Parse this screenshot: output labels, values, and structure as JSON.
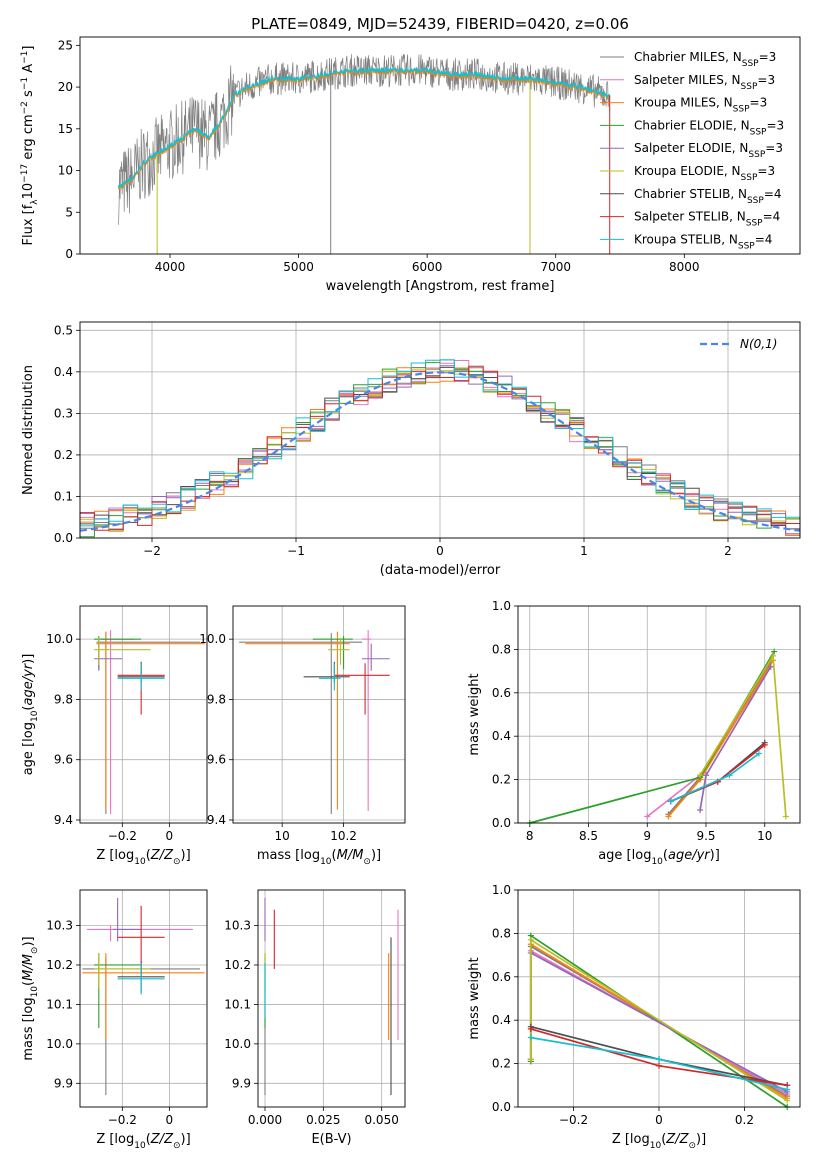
{
  "figure_title": "PLATE=0849, MJD=52439, FIBERID=0420, z=0.06",
  "colors": {
    "chabrier_miles": "#7f7f7f",
    "salpeter_miles": "#e377c2",
    "kroupa_miles": "#ff7f0e",
    "chabrier_elodie": "#2ca02c",
    "salpeter_elodie": "#9467bd",
    "kroupa_elodie": "#bcbd22",
    "chabrier_stelib": "#4d4d4d",
    "salpeter_stelib": "#d62728",
    "kroupa_stelib": "#17becf",
    "normal": "#4a86e8"
  },
  "chart_data": [
    {
      "id": "spectrum",
      "type": "line",
      "title": "PLATE=0849, MJD=52439, FIBERID=0420, z=0.06",
      "xlabel": "wavelength [Angstrom, rest frame]",
      "ylabel": "Flux [f_λ 10^-17 erg cm^-2 s^-1 A^-1]",
      "xlim": [
        3300,
        8900
      ],
      "ylim": [
        0,
        26
      ],
      "xticks": [
        4000,
        5000,
        6000,
        7000,
        8000
      ],
      "yticks": [
        0,
        5,
        10,
        15,
        20,
        25
      ],
      "legend_position": "upper-right",
      "series": [
        {
          "name": "Chabrier MILES, N_SSP=3"
        },
        {
          "name": "Salpeter MILES, N_SSP=3"
        },
        {
          "name": "Kroupa MILES, N_SSP=3"
        },
        {
          "name": "Chabrier ELODIE, N_SSP=3"
        },
        {
          "name": "Salpeter ELODIE, N_SSP=3"
        },
        {
          "name": "Kroupa ELODIE, N_SSP=3"
        },
        {
          "name": "Chabrier STELIB, N_SSP=4"
        },
        {
          "name": "Salpeter STELIB, N_SSP=4"
        },
        {
          "name": "Kroupa STELIB, N_SSP=4"
        }
      ],
      "data_envelope": {
        "x": [
          3600,
          3700,
          3800,
          3900,
          4000,
          4100,
          4200,
          4300,
          4400,
          4500,
          4600,
          4800,
          5000,
          5200,
          5400,
          5600,
          5800,
          6000,
          6200,
          6400,
          6600,
          6800,
          7000,
          7200,
          7400
        ],
        "y": [
          8,
          9,
          11,
          12,
          13,
          14,
          15,
          14,
          16,
          19,
          20,
          21,
          21,
          21.5,
          22,
          22,
          22,
          22,
          21.5,
          21.5,
          21,
          21,
          20.5,
          20,
          19
        ]
      }
    },
    {
      "id": "residuals",
      "type": "line",
      "xlabel": "(data-model)/error",
      "ylabel": "Normed distribution",
      "xlim": [
        -2.5,
        2.5
      ],
      "ylim": [
        0,
        0.52
      ],
      "xticks": [
        -2,
        -1,
        0,
        1,
        2
      ],
      "yticks": [
        0.0,
        0.1,
        0.2,
        0.3,
        0.4,
        0.5
      ],
      "legend": "N(0,1)",
      "legend_position": "upper-right",
      "grid": true,
      "histogram_bins": [
        -2.5,
        -2.4,
        -2.3,
        -2.2,
        -2.1,
        -2.0,
        -1.9,
        -1.8,
        -1.7,
        -1.6,
        -1.5,
        -1.4,
        -1.3,
        -1.2,
        -1.1,
        -1.0,
        -0.9,
        -0.8,
        -0.7,
        -0.6,
        -0.5,
        -0.4,
        -0.3,
        -0.2,
        -0.1,
        0.0,
        0.1,
        0.2,
        0.3,
        0.4,
        0.5,
        0.6,
        0.7,
        0.8,
        0.9,
        1.0,
        1.1,
        1.2,
        1.3,
        1.4,
        1.5,
        1.6,
        1.7,
        1.8,
        1.9,
        2.0,
        2.1,
        2.2,
        2.3,
        2.4,
        2.5
      ]
    },
    {
      "id": "age_vs_Z",
      "type": "scatter",
      "xlabel": "Z [log10(Z/Z_sun)]",
      "ylabel": "age [log10(age/yr)]",
      "xlim": [
        -0.38,
        0.16
      ],
      "ylim": [
        9.39,
        10.11
      ],
      "xticks": [
        -0.2,
        0.0
      ],
      "yticks": [
        9.4,
        9.6,
        9.8,
        10.0
      ],
      "grid": true,
      "points": [
        {
          "x": -0.27,
          "y": 9.99,
          "xerr": [
            0.04,
            0.4
          ],
          "yerr": [
            0.57,
            0.03
          ],
          "c": "chabrier_miles"
        },
        {
          "x": -0.25,
          "y": 10.0,
          "xerr": [
            0.04,
            0.1
          ],
          "yerr": [
            0.58,
            0.03
          ],
          "c": "salpeter_miles"
        },
        {
          "x": -0.27,
          "y": 9.985,
          "xerr": [
            0.04,
            0.42
          ],
          "yerr": [
            0.55,
            0.04
          ],
          "c": "kroupa_miles"
        },
        {
          "x": -0.3,
          "y": 10.0,
          "xerr": [
            0.02,
            0.18
          ],
          "yerr": [
            0.1,
            0.01
          ],
          "c": "chabrier_elodie"
        },
        {
          "x": -0.3,
          "y": 9.935,
          "xerr": [
            0.02,
            0.1
          ],
          "yerr": [
            0.04,
            0.05
          ],
          "c": "salpeter_elodie"
        },
        {
          "x": -0.3,
          "y": 9.965,
          "xerr": [
            0.02,
            0.22
          ],
          "yerr": [
            0.05,
            0.04
          ],
          "c": "kroupa_elodie"
        },
        {
          "x": -0.12,
          "y": 9.875,
          "xerr": [
            0.1,
            0.1
          ],
          "yerr": [
            0.02,
            0.05
          ],
          "c": "chabrier_stelib"
        },
        {
          "x": -0.12,
          "y": 9.88,
          "xerr": [
            0.1,
            0.1
          ],
          "yerr": [
            0.13,
            0.04
          ],
          "c": "salpeter_stelib"
        },
        {
          "x": -0.12,
          "y": 9.87,
          "xerr": [
            0.1,
            0.1
          ],
          "yerr": [
            0.04,
            0.05
          ],
          "c": "kroupa_stelib"
        }
      ]
    },
    {
      "id": "age_vs_mass",
      "type": "scatter",
      "xlabel": "mass [log10(M/M_sun)]",
      "ylabel": "",
      "xlim": [
        9.84,
        10.4
      ],
      "ylim": [
        9.39,
        10.11
      ],
      "xticks": [
        10.0,
        10.2
      ],
      "yticks": [
        9.4,
        9.6,
        9.8,
        10.0
      ],
      "grid": true,
      "points": [
        {
          "x": 10.16,
          "y": 9.99,
          "xerr": [
            0.3,
            0.1
          ],
          "yerr": [
            0.57,
            0.03
          ],
          "c": "chabrier_miles"
        },
        {
          "x": 10.28,
          "y": 10.0,
          "xerr": [
            0.02,
            0.01
          ],
          "yerr": [
            0.57,
            0.03
          ],
          "c": "salpeter_miles"
        },
        {
          "x": 10.18,
          "y": 9.985,
          "xerr": [
            0.3,
            0.04
          ],
          "yerr": [
            0.55,
            0.04
          ],
          "c": "kroupa_miles"
        },
        {
          "x": 10.2,
          "y": 10.0,
          "xerr": [
            0.1,
            0.03
          ],
          "yerr": [
            0.1,
            0.01
          ],
          "c": "chabrier_elodie"
        },
        {
          "x": 10.29,
          "y": 9.935,
          "xerr": [
            0.03,
            0.06
          ],
          "yerr": [
            0.04,
            0.05
          ],
          "c": "salpeter_elodie"
        },
        {
          "x": 10.19,
          "y": 9.965,
          "xerr": [
            0.04,
            0.03
          ],
          "yerr": [
            0.05,
            0.04
          ],
          "c": "kroupa_elodie"
        },
        {
          "x": 10.17,
          "y": 9.875,
          "xerr": [
            0.1,
            0.05
          ],
          "yerr": [
            0.02,
            0.05
          ],
          "c": "chabrier_stelib"
        },
        {
          "x": 10.27,
          "y": 9.88,
          "xerr": [
            0.1,
            0.08
          ],
          "yerr": [
            0.13,
            0.04
          ],
          "c": "salpeter_stelib"
        },
        {
          "x": 10.17,
          "y": 9.87,
          "xerr": [
            0.05,
            0.02
          ],
          "yerr": [
            0.04,
            0.05
          ],
          "c": "kroupa_stelib"
        }
      ]
    },
    {
      "id": "mass_weight_vs_age",
      "type": "line",
      "xlabel": "age [log10(age/yr)]",
      "ylabel": "mass weight",
      "xlim": [
        7.9,
        10.3
      ],
      "ylim": [
        0.0,
        1.0
      ],
      "xticks": [
        8.0,
        8.5,
        9.0,
        9.5,
        10.0
      ],
      "yticks": [
        0.0,
        0.2,
        0.4,
        0.6,
        0.8,
        1.0
      ],
      "grid": true,
      "series": [
        {
          "x": [
            9.18,
            9.45,
            10.05
          ],
          "y": [
            0.04,
            0.21,
            0.74
          ],
          "c": "chabrier_miles"
        },
        {
          "x": [
            9.0,
            9.45,
            10.05
          ],
          "y": [
            0.03,
            0.22,
            0.72
          ],
          "c": "salpeter_miles"
        },
        {
          "x": [
            9.18,
            9.45,
            10.07
          ],
          "y": [
            0.03,
            0.2,
            0.75
          ],
          "c": "kroupa_miles"
        },
        {
          "x": [
            8.0,
            9.45,
            10.08
          ],
          "y": [
            0.0,
            0.21,
            0.79
          ],
          "c": "chabrier_elodie"
        },
        {
          "x": [
            9.45,
            9.5,
            10.05
          ],
          "y": [
            0.06,
            0.22,
            0.72
          ],
          "c": "salpeter_elodie"
        },
        {
          "x": [
            9.45,
            10.07,
            10.18
          ],
          "y": [
            0.22,
            0.77,
            0.03
          ],
          "c": "kroupa_elodie"
        },
        {
          "x": [
            9.2,
            9.6,
            10.0
          ],
          "y": [
            0.1,
            0.19,
            0.37
          ],
          "c": "chabrier_stelib"
        },
        {
          "x": [
            9.2,
            9.6,
            10.0
          ],
          "y": [
            0.1,
            0.19,
            0.36
          ],
          "c": "salpeter_stelib"
        },
        {
          "x": [
            9.2,
            9.7,
            9.95
          ],
          "y": [
            0.1,
            0.22,
            0.32
          ],
          "c": "kroupa_stelib"
        }
      ]
    },
    {
      "id": "mass_vs_Z",
      "type": "scatter",
      "xlabel": "Z [log10(Z/Z_sun)]",
      "ylabel": "mass [log10(M/M_sun)]",
      "xlim": [
        -0.38,
        0.16
      ],
      "ylim": [
        9.84,
        10.39
      ],
      "xticks": [
        -0.2,
        0.0
      ],
      "yticks": [
        9.9,
        10.0,
        10.1,
        10.2,
        10.3
      ],
      "grid": true,
      "points": [
        {
          "x": -0.27,
          "y": 10.19,
          "xerr": [
            0.1,
            0.4
          ],
          "yerr": [
            0.32,
            0.03
          ],
          "c": "chabrier_miles"
        },
        {
          "x": -0.25,
          "y": 10.29,
          "xerr": [
            0.1,
            0.35
          ],
          "yerr": [
            0.03,
            0.01
          ],
          "c": "salpeter_miles"
        },
        {
          "x": -0.27,
          "y": 10.18,
          "xerr": [
            0.1,
            0.42
          ],
          "yerr": [
            0.17,
            0.05
          ],
          "c": "kroupa_miles"
        },
        {
          "x": -0.3,
          "y": 10.2,
          "xerr": [
            0.02,
            0.18
          ],
          "yerr": [
            0.16,
            0.03
          ],
          "c": "chabrier_elodie"
        },
        {
          "x": -0.22,
          "y": 10.29,
          "xerr": [
            0.02,
            0.1
          ],
          "yerr": [
            0.03,
            0.08
          ],
          "c": "salpeter_elodie"
        },
        {
          "x": -0.3,
          "y": 10.19,
          "xerr": [
            0.02,
            0.22
          ],
          "yerr": [
            0.05,
            0.04
          ],
          "c": "kroupa_elodie"
        },
        {
          "x": -0.12,
          "y": 10.17,
          "xerr": [
            0.1,
            0.1
          ],
          "yerr": [
            0.04,
            0.04
          ],
          "c": "chabrier_stelib"
        },
        {
          "x": -0.12,
          "y": 10.27,
          "xerr": [
            0.1,
            0.1
          ],
          "yerr": [
            0.1,
            0.08
          ],
          "c": "salpeter_stelib"
        },
        {
          "x": -0.12,
          "y": 10.165,
          "xerr": [
            0.1,
            0.1
          ],
          "yerr": [
            0.04,
            0.04
          ],
          "c": "kroupa_stelib"
        }
      ]
    },
    {
      "id": "mass_vs_ebv",
      "type": "scatter",
      "xlabel": "E(B-V)",
      "ylabel": "",
      "xlim": [
        -0.003,
        0.06
      ],
      "ylim": [
        9.84,
        10.39
      ],
      "xticks": [
        0.0,
        0.025,
        0.05
      ],
      "yticks": [
        9.9,
        10.0,
        10.1,
        10.2,
        10.3
      ],
      "grid": true,
      "points": [
        {
          "x": 0.0,
          "y": 10.19,
          "xerr": [
            0,
            0
          ],
          "yerr": [
            0.32,
            0.03
          ],
          "c": "chabrier_miles"
        },
        {
          "x": 0.057,
          "y": 10.29,
          "xerr": [
            0,
            0
          ],
          "yerr": [
            0.28,
            0.05
          ],
          "c": "salpeter_miles"
        },
        {
          "x": 0.053,
          "y": 10.18,
          "xerr": [
            0,
            0
          ],
          "yerr": [
            0.17,
            0.05
          ],
          "c": "kroupa_miles"
        },
        {
          "x": 0.0,
          "y": 10.2,
          "xerr": [
            0,
            0
          ],
          "yerr": [
            0.16,
            0.03
          ],
          "c": "chabrier_elodie"
        },
        {
          "x": 0.0,
          "y": 10.29,
          "xerr": [
            0,
            0
          ],
          "yerr": [
            0.03,
            0.08
          ],
          "c": "salpeter_elodie"
        },
        {
          "x": 0.0,
          "y": 10.19,
          "xerr": [
            0,
            0
          ],
          "yerr": [
            0.05,
            0.04
          ],
          "c": "kroupa_elodie"
        },
        {
          "x": 0.054,
          "y": 10.17,
          "xerr": [
            0,
            0
          ],
          "yerr": [
            0.3,
            0.1
          ],
          "c": "chabrier_stelib"
        },
        {
          "x": 0.004,
          "y": 10.27,
          "xerr": [
            0,
            0
          ],
          "yerr": [
            0.08,
            0.07
          ],
          "c": "salpeter_stelib"
        },
        {
          "x": 0.0,
          "y": 10.165,
          "xerr": [
            0,
            0
          ],
          "yerr": [
            0.1,
            0.04
          ],
          "c": "kroupa_stelib"
        }
      ]
    },
    {
      "id": "mass_weight_vs_Z",
      "type": "line",
      "xlabel": "Z [log10(Z/Z_sun)]",
      "ylabel": "mass weight",
      "xlim": [
        -0.33,
        0.33
      ],
      "ylim": [
        0.0,
        1.0
      ],
      "xticks": [
        -0.2,
        0.0,
        0.2
      ],
      "yticks": [
        0.0,
        0.2,
        0.4,
        0.6,
        0.8,
        1.0
      ],
      "grid": true,
      "series": [
        {
          "x": [
            -0.3,
            -0.3,
            0.3
          ],
          "y": [
            0.22,
            0.74,
            0.05
          ],
          "c": "chabrier_miles"
        },
        {
          "x": [
            -0.3,
            -0.3,
            0.3
          ],
          "y": [
            0.21,
            0.72,
            0.06
          ],
          "c": "salpeter_miles"
        },
        {
          "x": [
            -0.3,
            -0.3,
            0.3
          ],
          "y": [
            0.22,
            0.75,
            0.04
          ],
          "c": "kroupa_miles"
        },
        {
          "x": [
            -0.3,
            -0.3,
            0.3
          ],
          "y": [
            0.21,
            0.79,
            0.0
          ],
          "c": "chabrier_elodie"
        },
        {
          "x": [
            -0.3,
            0.3
          ],
          "y": [
            0.71,
            0.07
          ],
          "c": "salpeter_elodie"
        },
        {
          "x": [
            -0.3,
            -0.3,
            0.3
          ],
          "y": [
            0.22,
            0.77,
            0.03
          ],
          "c": "kroupa_elodie"
        },
        {
          "x": [
            -0.3,
            0.0,
            0.3
          ],
          "y": [
            0.37,
            0.22,
            0.1
          ],
          "c": "chabrier_stelib"
        },
        {
          "x": [
            -0.3,
            0.0,
            0.3
          ],
          "y": [
            0.36,
            0.19,
            0.1
          ],
          "c": "salpeter_stelib"
        },
        {
          "x": [
            -0.3,
            0.0,
            0.3
          ],
          "y": [
            0.32,
            0.22,
            0.08
          ],
          "c": "kroupa_stelib"
        }
      ]
    }
  ]
}
